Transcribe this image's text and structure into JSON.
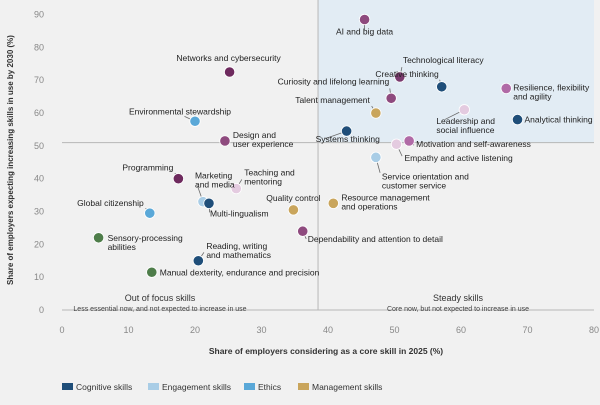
{
  "chart_data": {
    "type": "scatter",
    "title": "",
    "xlabel": "Share of employers considering as a core skill in 2025 (%)",
    "ylabel": "Share of employers expecting increasing skills in use by 2030 (%)",
    "xlim": [
      0,
      80
    ],
    "ylim": [
      0,
      92
    ],
    "xticks": [
      0,
      10,
      20,
      30,
      40,
      50,
      60,
      70,
      80
    ],
    "yticks": [
      0,
      10,
      20,
      30,
      40,
      50,
      60,
      70,
      80,
      90
    ],
    "divider_x": 38.5,
    "divider_y": 51,
    "grid": false,
    "legend_position": "bottom-left",
    "quadrants": [
      {
        "title": "Out of focus skills",
        "subtitle": "Less essential now, and not expected to increase in use"
      },
      {
        "title": "Steady skills",
        "subtitle": "Core now, but not expected to increase in use"
      }
    ],
    "categories": [
      {
        "name": "Cognitive skills",
        "color": "#1f4e79"
      },
      {
        "name": "Engagement skills",
        "color": "#a9cde6"
      },
      {
        "name": "Ethics",
        "color": "#5aa8d8"
      },
      {
        "name": "Management skills",
        "color": "#c9a55c"
      }
    ],
    "points": [
      {
        "label": "AI and big data",
        "x": 45.5,
        "y": 88.5,
        "color": "#8e4a7e"
      },
      {
        "label": "Technological literacy",
        "x": 50.8,
        "y": 71,
        "color": "#7a3a6e"
      },
      {
        "label": "Creative thinking",
        "x": 57.1,
        "y": 68,
        "color": "#1f4e79"
      },
      {
        "label": "Resilience, flexibility and agility",
        "x": 66.8,
        "y": 67.5,
        "color": "#b06aa6"
      },
      {
        "label": "Curiosity and lifelong learning",
        "x": 49.5,
        "y": 64.5,
        "color": "#8e4a7e"
      },
      {
        "label": "Leadership and social influence",
        "x": 60.5,
        "y": 61,
        "color": "#e4cbe0"
      },
      {
        "label": "Analytical thinking",
        "x": 68.5,
        "y": 58,
        "color": "#1f4e79"
      },
      {
        "label": "Talent management",
        "x": 47.2,
        "y": 60,
        "color": "#c9a55c"
      },
      {
        "label": "Networks and cybersecurity",
        "x": 25.2,
        "y": 72.5,
        "color": "#6e2a5e"
      },
      {
        "label": "Environmental stewardship",
        "x": 20,
        "y": 57.5,
        "color": "#5aa8d8"
      },
      {
        "label": "Design and user experience",
        "x": 24.5,
        "y": 51.5,
        "color": "#8e4a7e"
      },
      {
        "label": "Systems thinking",
        "x": 42.8,
        "y": 54.5,
        "color": "#1f4e79"
      },
      {
        "label": "Motivation and self-awareness",
        "x": 52.2,
        "y": 51.5,
        "color": "#b06aa6"
      },
      {
        "label": "Empathy and active listening",
        "x": 50.3,
        "y": 50.5,
        "color": "#e4cbe0"
      },
      {
        "label": "Service orientation and customer service",
        "x": 47.2,
        "y": 46.5,
        "color": "#a9cde6"
      },
      {
        "label": "Programming",
        "x": 17.5,
        "y": 40,
        "color": "#6e2a5e"
      },
      {
        "label": "Marketing and media",
        "x": 21.2,
        "y": 33,
        "color": "#a9cde6"
      },
      {
        "label": "Teaching and mentoring",
        "x": 26.2,
        "y": 37,
        "color": "#e4cbe0"
      },
      {
        "label": "Multi-lingualism",
        "x": 22.1,
        "y": 32.5,
        "color": "#1f4e79"
      },
      {
        "label": "Global citizenship",
        "x": 13.2,
        "y": 29.5,
        "color": "#5aa8d8"
      },
      {
        "label": "Quality control",
        "x": 34.8,
        "y": 30.5,
        "color": "#c9a55c"
      },
      {
        "label": "Resource management and operations",
        "x": 40.8,
        "y": 32.5,
        "color": "#c9a55c"
      },
      {
        "label": "Dependability and attention to detail",
        "x": 36.2,
        "y": 24,
        "color": "#8e4a7e"
      },
      {
        "label": "Sensory-processing abilities",
        "x": 5.5,
        "y": 22,
        "color": "#4e7d4a"
      },
      {
        "label": "Reading, writing and mathematics",
        "x": 20.5,
        "y": 15,
        "color": "#1f4e79"
      },
      {
        "label": "Manual dexterity, endurance and precision",
        "x": 13.5,
        "y": 11.5,
        "color": "#4e7d4a"
      }
    ]
  }
}
